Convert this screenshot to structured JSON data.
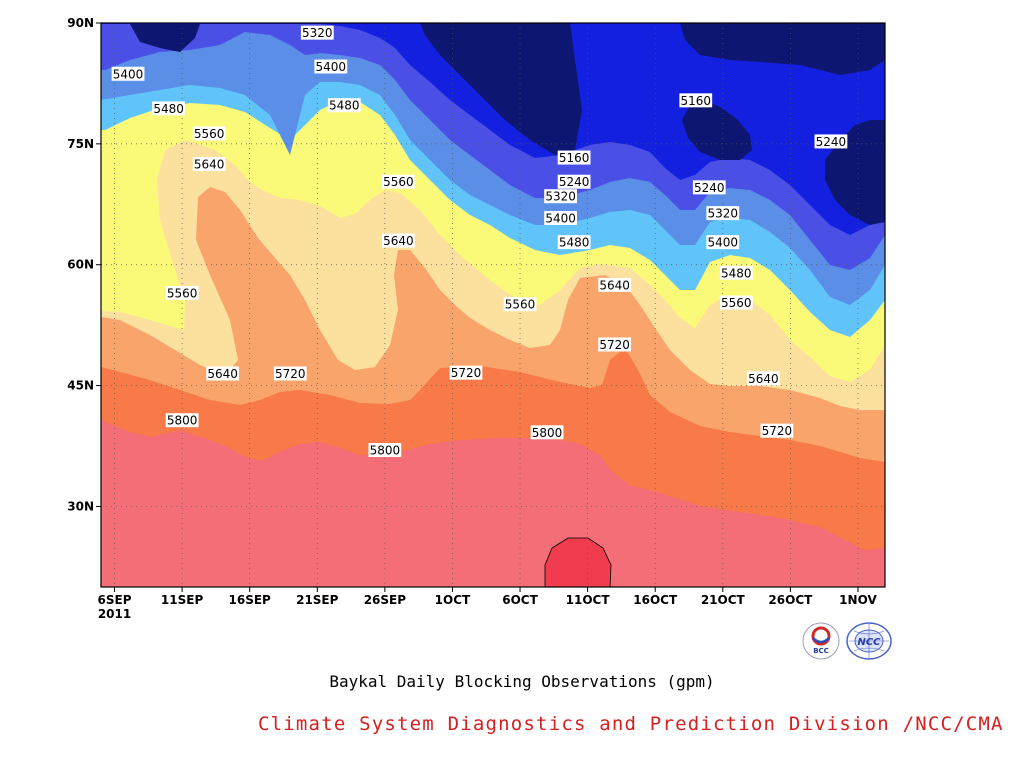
{
  "title": "Baykal Daily Blocking Observations (gpm)",
  "credit": "Climate System Diagnostics and Prediction Division /NCC/CMA",
  "logos": {
    "bcc": "BCC",
    "ncc": "NCC"
  },
  "colors": {
    "below_5160": "#0d1670",
    "c5160_5240": "#1420e0",
    "c5240_5320": "#4a50e6",
    "c5320_5400": "#5b8ee6",
    "c5400_5480": "#60c4fa",
    "c5480_5560": "#fafa78",
    "c5560_5640": "#fce09e",
    "c5640_5720": "#f8a46a",
    "c5720_5800": "#f77a48",
    "c5800_5880": "#f46e78",
    "above_5880": "#f03c4e",
    "credit": "#d42020"
  },
  "chart_data": {
    "type": "contour",
    "title": "Baykal Daily Blocking Observations (gpm)",
    "x_tick_labels": [
      "6SEP",
      "11SEP",
      "16SEP",
      "21SEP",
      "26SEP",
      "1OCT",
      "6OCT",
      "11OCT",
      "16OCT",
      "21OCT",
      "26OCT",
      "1NOV"
    ],
    "x_year_label": "2011",
    "y_tick_labels": [
      "30N",
      "45N",
      "60N",
      "75N",
      "90N"
    ],
    "y_ticks": [
      30,
      45,
      60,
      75,
      90
    ],
    "xlim": [
      "2011-09-05",
      "2011-11-02"
    ],
    "ylim": [
      20,
      90
    ],
    "contour_levels": [
      5160,
      5240,
      5320,
      5400,
      5480,
      5560,
      5640,
      5720,
      5800,
      5880
    ],
    "grid": true,
    "contour_labels": [
      {
        "text": "5320",
        "date": "2011-09-21",
        "lat": 88.8
      },
      {
        "text": "5400",
        "date": "2011-09-07",
        "lat": 83.7
      },
      {
        "text": "5400",
        "date": "2011-09-22",
        "lat": 84.6
      },
      {
        "text": "5480",
        "date": "2011-09-10",
        "lat": 79.4
      },
      {
        "text": "5480",
        "date": "2011-09-23",
        "lat": 79.8
      },
      {
        "text": "5560",
        "date": "2011-09-13",
        "lat": 76.3
      },
      {
        "text": "5640",
        "date": "2011-09-13",
        "lat": 72.5
      },
      {
        "text": "5560",
        "date": "2011-09-11",
        "lat": 56.5
      },
      {
        "text": "5560",
        "date": "2011-09-27",
        "lat": 70.3
      },
      {
        "text": "5640",
        "date": "2011-09-27",
        "lat": 63.0
      },
      {
        "text": "5640",
        "date": "2011-09-14",
        "lat": 46.5
      },
      {
        "text": "5720",
        "date": "2011-09-19",
        "lat": 46.5
      },
      {
        "text": "5720",
        "date": "2011-10-02",
        "lat": 46.6
      },
      {
        "text": "5800",
        "date": "2011-09-11",
        "lat": 40.7
      },
      {
        "text": "5800",
        "date": "2011-09-26",
        "lat": 37.0
      },
      {
        "text": "5800",
        "date": "2011-10-08",
        "lat": 39.2
      },
      {
        "text": "5160",
        "date": "2011-10-10",
        "lat": 73.3
      },
      {
        "text": "5240",
        "date": "2011-10-10",
        "lat": 70.3
      },
      {
        "text": "5320",
        "date": "2011-10-09",
        "lat": 68.5
      },
      {
        "text": "5400",
        "date": "2011-10-09",
        "lat": 65.8
      },
      {
        "text": "5480",
        "date": "2011-10-10",
        "lat": 62.8
      },
      {
        "text": "5560",
        "date": "2011-10-06",
        "lat": 55.1
      },
      {
        "text": "5640",
        "date": "2011-10-13",
        "lat": 57.5
      },
      {
        "text": "5720",
        "date": "2011-10-13",
        "lat": 50.1
      },
      {
        "text": "5160",
        "date": "2011-10-19",
        "lat": 80.4
      },
      {
        "text": "5240",
        "date": "2011-10-29",
        "lat": 75.3
      },
      {
        "text": "5240",
        "date": "2011-10-20",
        "lat": 69.6
      },
      {
        "text": "5320",
        "date": "2011-10-21",
        "lat": 66.4
      },
      {
        "text": "5400",
        "date": "2011-10-21",
        "lat": 62.8
      },
      {
        "text": "5480",
        "date": "2011-10-22",
        "lat": 59.0
      },
      {
        "text": "5560",
        "date": "2011-10-22",
        "lat": 55.3
      },
      {
        "text": "5640",
        "date": "2011-10-24",
        "lat": 45.9
      },
      {
        "text": "5720",
        "date": "2011-10-25",
        "lat": 39.4
      }
    ]
  }
}
